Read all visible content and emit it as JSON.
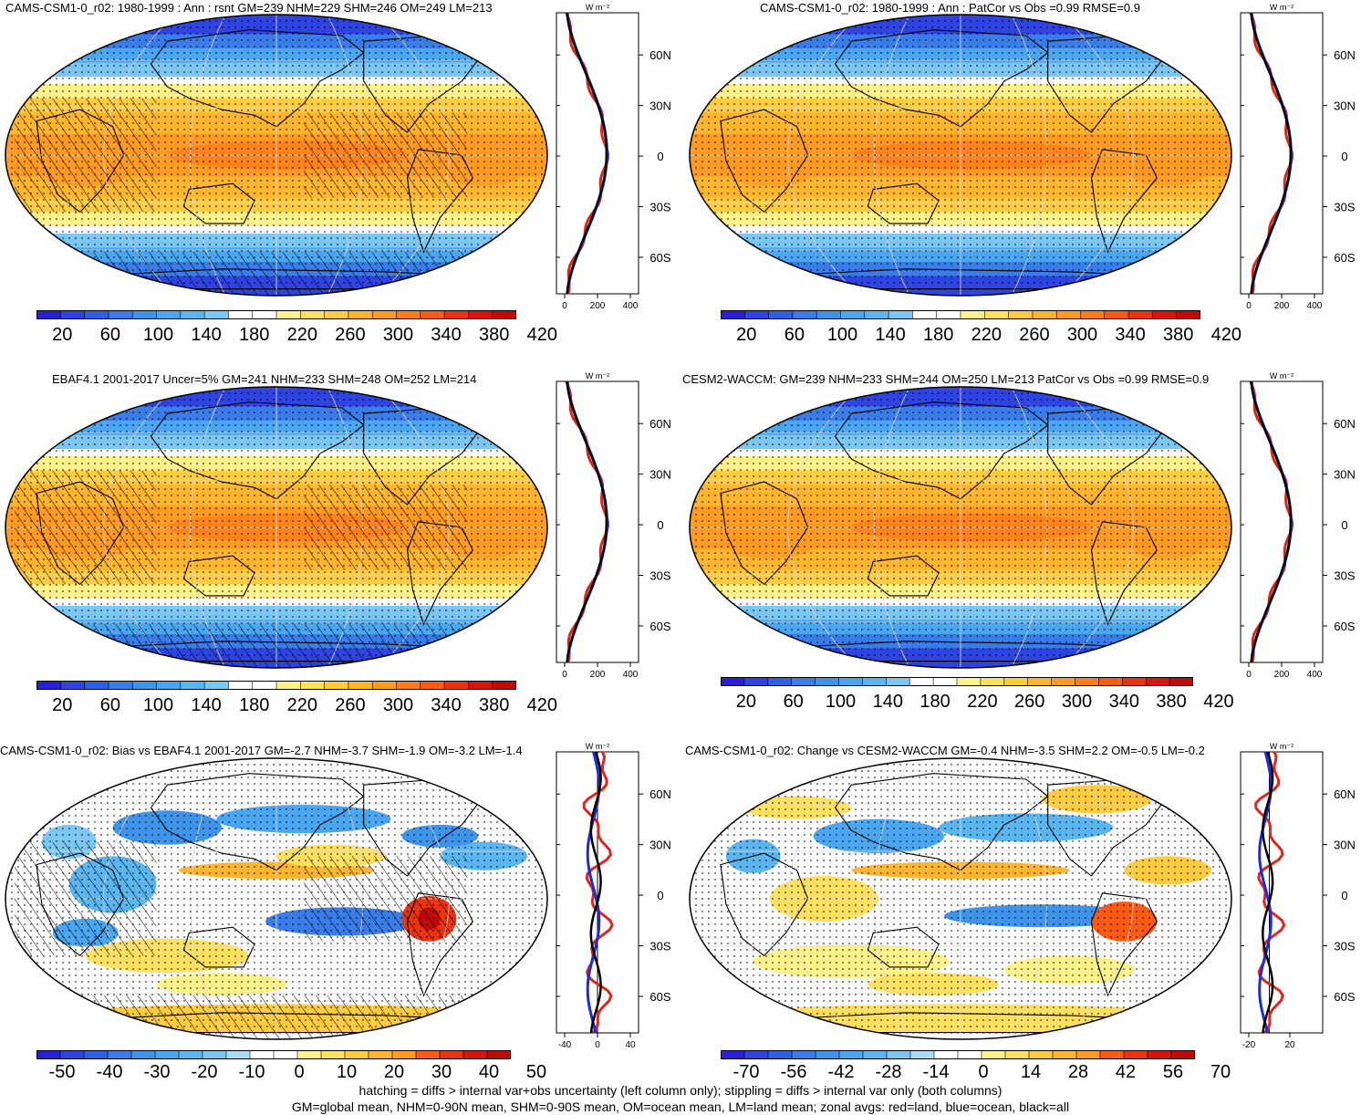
{
  "panels": [
    {
      "id": "p1",
      "title": "CAMS-CSM1-0_r02: 1980-1999 : Ann : rsnt GM=239 NHM=229 SHM=246 OM=249 LM=213",
      "kind": "abs",
      "hatch": true,
      "colorbar_labels": [
        "20",
        "60",
        "100",
        "140",
        "180",
        "220",
        "260",
        "300",
        "340",
        "380",
        "420"
      ],
      "zonal_unit": "W m⁻²",
      "zonal_ticks": [
        "0",
        "200",
        "400"
      ],
      "lat_labels": [
        "60N",
        "30N",
        "0",
        "30S",
        "60S"
      ]
    },
    {
      "id": "p2",
      "title": "CAMS-CSM1-0_r02: 1980-1999 : Ann : PatCor vs Obs =0.99 RMSE=0.9",
      "kind": "abs",
      "hatch": false,
      "colorbar_labels": [
        "20",
        "60",
        "100",
        "140",
        "180",
        "220",
        "260",
        "300",
        "340",
        "380",
        "420"
      ],
      "zonal_unit": "W m⁻²",
      "zonal_ticks": [
        "0",
        "200",
        "400"
      ],
      "lat_labels": [
        "60N",
        "30N",
        "0",
        "30S",
        "60S"
      ]
    },
    {
      "id": "p3",
      "title": "EBAF4.1 2001-2017 Uncer=5% GM=241 NHM=233 SHM=248 OM=252 LM=214",
      "kind": "abs",
      "hatch": true,
      "colorbar_labels": [
        "20",
        "60",
        "100",
        "140",
        "180",
        "220",
        "260",
        "300",
        "340",
        "380",
        "420"
      ],
      "zonal_unit": "W m⁻²",
      "zonal_ticks": [
        "0",
        "200",
        "400"
      ],
      "lat_labels": [
        "60N",
        "30N",
        "0",
        "30S",
        "60S"
      ]
    },
    {
      "id": "p4",
      "title": "CESM2-WACCM: GM=239 NHM=233 SHM=244 OM=250 LM=213 PatCor vs Obs =0.99 RMSE=0.9",
      "kind": "abs",
      "hatch": false,
      "colorbar_labels": [
        "20",
        "60",
        "100",
        "140",
        "180",
        "220",
        "260",
        "300",
        "340",
        "380",
        "420"
      ],
      "zonal_unit": "W m⁻²",
      "zonal_ticks": [
        "0",
        "200",
        "400"
      ],
      "lat_labels": [
        "60N",
        "30N",
        "0",
        "30S",
        "60S"
      ]
    },
    {
      "id": "p5",
      "title": "CAMS-CSM1-0_r02: Bias vs EBAF4.1 2001-2017 GM=-2.7 NHM=-3.7 SHM=-1.9 OM=-3.2 LM=-1.4",
      "kind": "diff",
      "hatch": true,
      "colorbar_labels": [
        "-50",
        "-40",
        "-30",
        "-20",
        "-10",
        "0",
        "10",
        "20",
        "30",
        "40",
        "50"
      ],
      "zonal_unit": "W m⁻²",
      "zonal_ticks": [
        "-40",
        "0",
        "40"
      ],
      "lat_labels": [
        "60N",
        "30N",
        "0",
        "30S",
        "60S"
      ]
    },
    {
      "id": "p6",
      "title": "CAMS-CSM1-0_r02: Change vs CESM2-WACCM GM=-0.4 NHM=-3.5 SHM=2.2 OM=-0.5 LM=-0.2",
      "kind": "diff",
      "hatch": false,
      "colorbar_labels": [
        "-70",
        "-56",
        "-42",
        "-28",
        "-14",
        "0",
        "14",
        "28",
        "42",
        "56",
        "70"
      ],
      "zonal_unit": "W m⁻²",
      "zonal_ticks": [
        "-20",
        "20"
      ],
      "lat_labels": [
        "60N",
        "30N",
        "0",
        "30S",
        "60S"
      ]
    }
  ],
  "colors": {
    "abs_scale": [
      "#2a1fd6",
      "#2f43e0",
      "#2e60e6",
      "#3a7de8",
      "#3f94ea",
      "#4aa6ee",
      "#5bb6f0",
      "#7cc6f2",
      "#ffffff",
      "#ffffff",
      "#fff28a",
      "#ffe060",
      "#ffcc3f",
      "#ffb52d",
      "#ff9a22",
      "#ff7c1a",
      "#f95a14",
      "#ea3410",
      "#d8140e",
      "#c00a0a"
    ],
    "diff_scale": [
      "#2a1fd6",
      "#2f43e0",
      "#2e60e6",
      "#3a7de8",
      "#3f94ea",
      "#4aa6ee",
      "#5bb6f0",
      "#7cc6f2",
      "#a9dbf6",
      "#ffffff",
      "#ffffff",
      "#fff28a",
      "#ffe060",
      "#ffcc3f",
      "#ffb52d",
      "#ff9a22",
      "#f95a14",
      "#ea3410",
      "#d8140e",
      "#c00a0a"
    ],
    "land_line": "#e0261c",
    "ocean_line": "#1f2bd6",
    "all_line": "#000000"
  },
  "footer": {
    "line1": "hatching = diffs > internal var+obs uncertainty (left column only); stippling = diffs > internal var only (both columns)",
    "line2": "GM=global mean, NHM=0-90N mean, SHM=0-90S mean, OM=ocean mean, LM=land mean; zonal avgs: red=land, blue=ocean, black=all"
  }
}
